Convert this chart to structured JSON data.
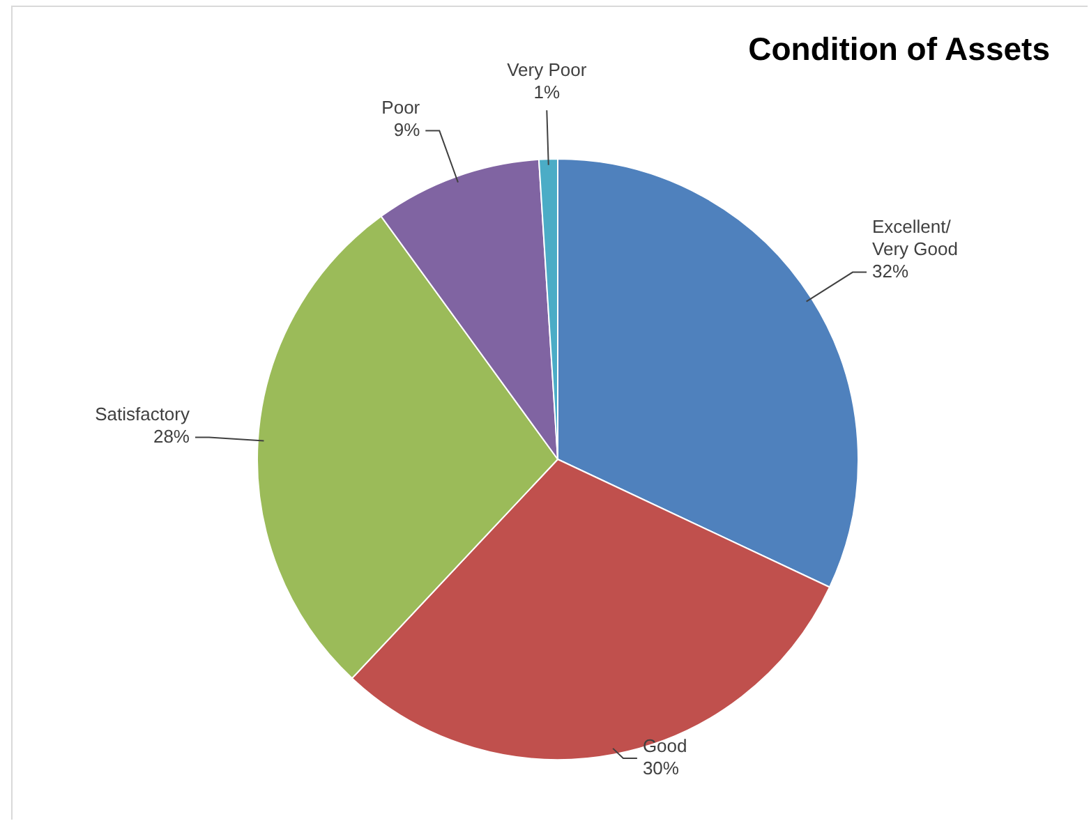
{
  "chart_data": {
    "type": "pie",
    "title": "Condition of Assets",
    "categories": [
      "Excellent/ Very Good",
      "Good",
      "Satisfactory",
      "Poor",
      "Very Poor"
    ],
    "values": [
      32,
      30,
      28,
      9,
      1
    ],
    "colors": [
      "#4f81bd",
      "#c0504d",
      "#9bbb59",
      "#8064a2",
      "#4bacc6"
    ],
    "value_labels": [
      "32%",
      "30%",
      "28%",
      "9%",
      "1%"
    ],
    "legend": false
  }
}
